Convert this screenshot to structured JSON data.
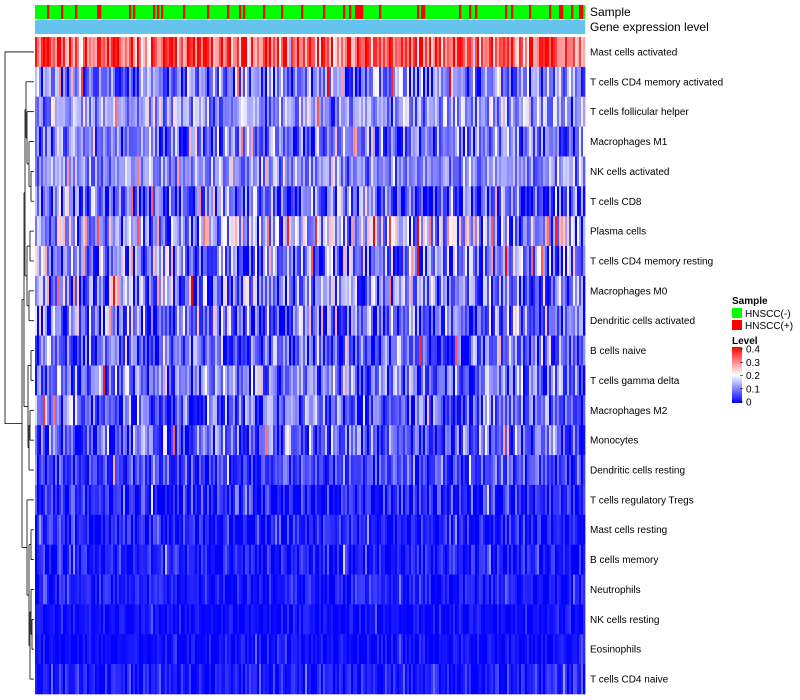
{
  "chart_data": {
    "type": "heatmap",
    "annotations": {
      "sample_label": "Sample",
      "gene_label": "Gene expression level"
    },
    "rows": [
      "Mast cells activated",
      "T cells CD4 memory activated",
      "T cells follicular helper",
      "Macrophages M1",
      "NK cells activated",
      "T cells CD8",
      "Plasma cells",
      "T cells CD4 memory resting",
      "Macrophages M0",
      "Dendritic cells activated",
      "B cells naive",
      "T cells gamma delta",
      "Macrophages M2",
      "Monocytes",
      "Dendritic cells resting",
      "T cells regulatory  Tregs",
      "Mast cells resting",
      "B cells memory",
      "Neutrophils",
      "NK cells resting",
      "Eosinophils",
      "T cells CD4 naive"
    ],
    "row_mean_level": [
      0.33,
      0.09,
      0.12,
      0.09,
      0.11,
      0.08,
      0.13,
      0.09,
      0.1,
      0.08,
      0.07,
      0.09,
      0.07,
      0.07,
      0.05,
      0.03,
      0.02,
      0.02,
      0.02,
      0.01,
      0.01,
      0.02
    ],
    "row_spread": [
      0.07,
      0.07,
      0.05,
      0.06,
      0.04,
      0.07,
      0.09,
      0.08,
      0.08,
      0.07,
      0.06,
      0.06,
      0.06,
      0.06,
      0.04,
      0.04,
      0.03,
      0.03,
      0.02,
      0.015,
      0.015,
      0.02
    ],
    "n_samples": 275,
    "legend": {
      "sample": {
        "title": "Sample",
        "items": [
          {
            "label": "HNSCC(-)",
            "color": "#00ff00"
          },
          {
            "label": "HNSCC(+)",
            "color": "#ff0000"
          }
        ]
      },
      "level": {
        "title": "Level",
        "ticks": [
          "0.4",
          "0.3",
          "0.2",
          "0.1",
          "0"
        ],
        "range": [
          0,
          0.4
        ],
        "colors": [
          "#0000ff",
          "#ffffff",
          "#ff0000"
        ]
      }
    },
    "gene_bar_color": "#66c2ef"
  }
}
